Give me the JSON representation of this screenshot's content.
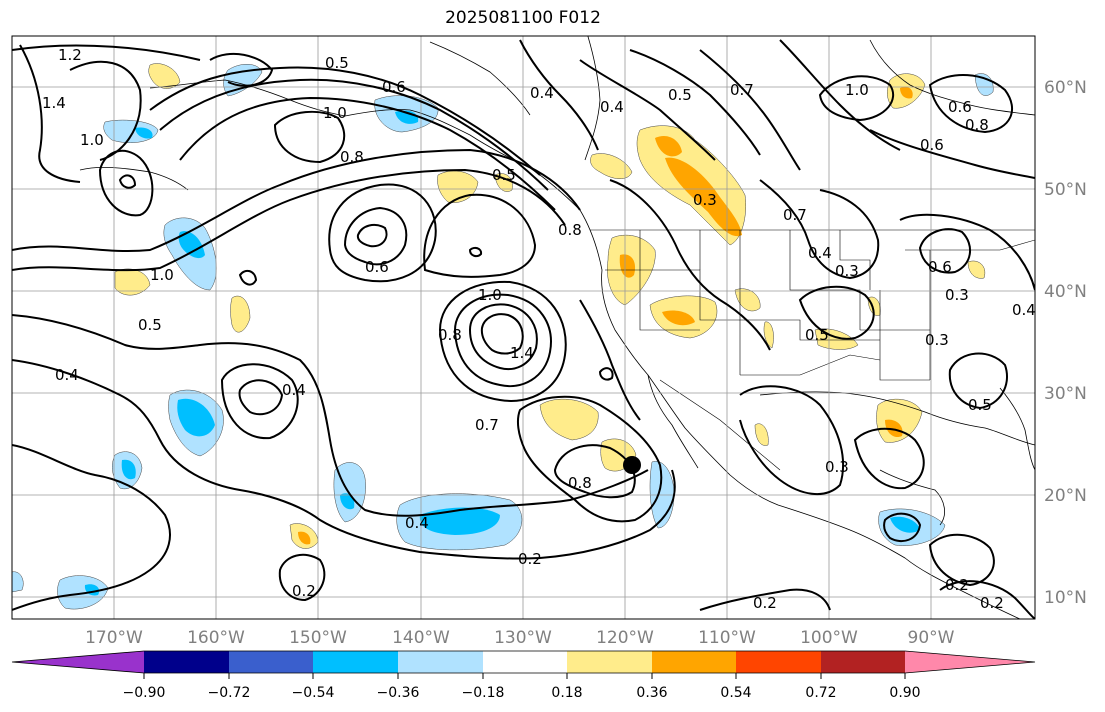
{
  "title": "2025081100 F012",
  "lat_labels": [
    "60°N",
    "50°N",
    "40°N",
    "30°N",
    "20°N",
    "10°N"
  ],
  "lon_labels": [
    "170°W",
    "160°W",
    "150°W",
    "140°W",
    "130°W",
    "120°W",
    "110°W",
    "100°W",
    "90°W"
  ],
  "colorbar": {
    "colors": [
      "#9932cc",
      "#00008b",
      "#3a5fcd",
      "#00bfff",
      "#b0e2ff",
      "#ffffff",
      "#ffec8b",
      "#ffa500",
      "#ff4500",
      "#b22222",
      "#ff88aa"
    ],
    "tick_labels": [
      "−0.90",
      "−0.72",
      "−0.54",
      "−0.36",
      "−0.18",
      "0.18",
      "0.36",
      "0.54",
      "0.72",
      "0.90"
    ]
  },
  "contour_labels": [
    {
      "text": "1.2"
    },
    {
      "text": "1.4"
    },
    {
      "text": "1.0"
    },
    {
      "text": "0.5"
    },
    {
      "text": "0.6"
    },
    {
      "text": "1.0"
    },
    {
      "text": "0.8"
    },
    {
      "text": "0.4"
    },
    {
      "text": "0.6"
    },
    {
      "text": "0.4"
    },
    {
      "text": "0.5"
    },
    {
      "text": "1.0"
    },
    {
      "text": "0.5"
    },
    {
      "text": "0.4"
    },
    {
      "text": "0.4"
    },
    {
      "text": "1.0"
    },
    {
      "text": "1.4"
    },
    {
      "text": "0.8"
    },
    {
      "text": "0.7"
    },
    {
      "text": "0.8"
    },
    {
      "text": "0.4"
    },
    {
      "text": "0.2"
    },
    {
      "text": "0.2"
    },
    {
      "text": "0.8"
    },
    {
      "text": "0.3"
    },
    {
      "text": "0.7"
    },
    {
      "text": "0.4"
    },
    {
      "text": "0.3"
    },
    {
      "text": "0.5"
    },
    {
      "text": "0.3"
    },
    {
      "text": "0.3"
    },
    {
      "text": "0.5"
    },
    {
      "text": "0.6"
    },
    {
      "text": "0.3"
    },
    {
      "text": "0.2"
    },
    {
      "text": "0.2"
    },
    {
      "text": "0.2"
    },
    {
      "text": "1.0"
    },
    {
      "text": "0.6"
    },
    {
      "text": "0.6"
    },
    {
      "text": "0.4"
    },
    {
      "text": "0.8"
    },
    {
      "text": "0.7"
    },
    {
      "text": "0.5"
    }
  ]
}
